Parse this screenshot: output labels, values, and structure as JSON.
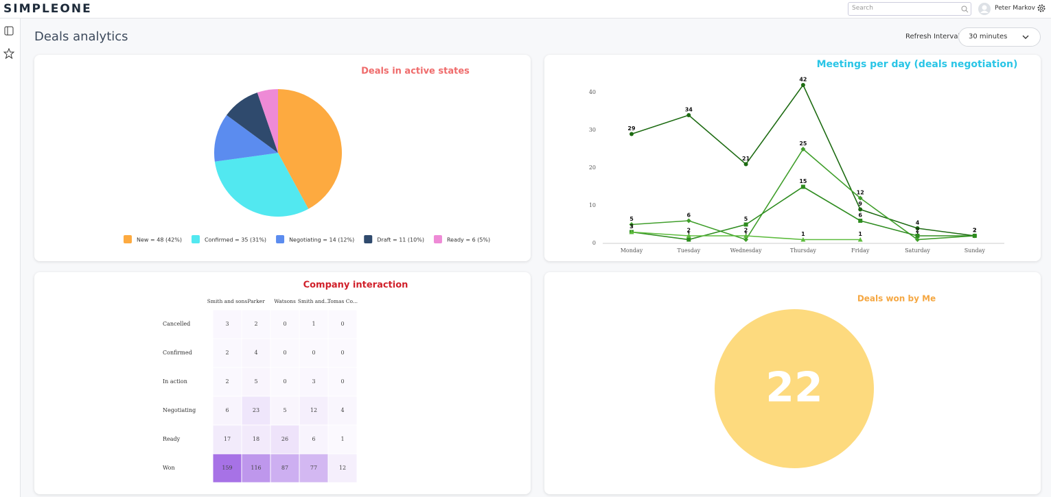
{
  "header": {
    "logo": "SIMPLEONE",
    "search_placeholder": "Search",
    "user": "Peter Markov"
  },
  "page": {
    "title": "Deals analytics",
    "refresh_label": "Refresh Interval",
    "refresh_value": "30 minutes"
  },
  "chart_data": [
    {
      "type": "pie",
      "title": "Deals in active states",
      "categories": [
        "New = 48 (42%)",
        "Confirmed = 35 (31%)",
        "Negotiating = 14 (12%)",
        "Draft = 11 (10%)",
        "Ready = 6 (5%)"
      ],
      "values": [
        48,
        35,
        14,
        11,
        6
      ],
      "colors": [
        "#fdaa40",
        "#52e8f0",
        "#5b8cef",
        "#2f4a6d",
        "#ee8ad6"
      ]
    },
    {
      "type": "line",
      "title": "Meetings per day (deals negotiation)",
      "categories": [
        "Monday",
        "Tuesday",
        "Wednesday",
        "Thursday",
        "Friday",
        "Saturday",
        "Sunday"
      ],
      "ylim": [
        0,
        45
      ],
      "yticks": [
        0,
        10,
        20,
        30,
        40
      ],
      "grid": false,
      "series": [
        {
          "color": "#1d6b12",
          "marker": "circle",
          "values": [
            29,
            34,
            21,
            42,
            9,
            4,
            2
          ]
        },
        {
          "color": "#3f9e2a",
          "marker": "diamond",
          "values": [
            5,
            6,
            1,
            25,
            12,
            1,
            2
          ]
        },
        {
          "color": "#2e8c1f",
          "marker": "square",
          "values": [
            3,
            1,
            5,
            15,
            6,
            2,
            2
          ]
        },
        {
          "color": "#5cbb3c",
          "marker": "triangle",
          "values": [
            3,
            2,
            2,
            1,
            1,
            null,
            null
          ]
        }
      ]
    },
    {
      "type": "heatmap",
      "title": "Company interaction",
      "x_categories": [
        "Smith and sons",
        "Parker",
        "Watsons",
        "Smith and...",
        "Tomas Co..."
      ],
      "y_categories": [
        "Cancelled",
        "Confirmed",
        "In action",
        "Negotiating",
        "Ready",
        "Won"
      ],
      "values": [
        [
          3,
          2,
          0,
          1,
          0
        ],
        [
          2,
          4,
          0,
          0,
          0
        ],
        [
          2,
          5,
          0,
          3,
          0
        ],
        [
          6,
          23,
          5,
          12,
          4
        ],
        [
          17,
          18,
          26,
          6,
          1
        ],
        [
          159,
          116,
          87,
          77,
          12
        ]
      ],
      "color": "#a772e6"
    },
    {
      "type": "number",
      "title": "Deals won by Me",
      "value": 22,
      "color": "#fdda7e"
    }
  ]
}
